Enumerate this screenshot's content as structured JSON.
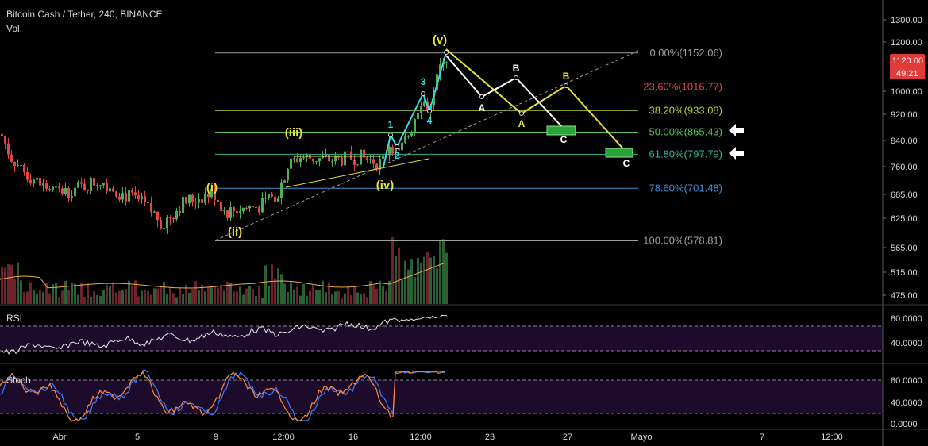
{
  "header": {
    "title": "Bitcoin Cash / Tether, 240, BINANCE",
    "volume_label": "Vol."
  },
  "colors": {
    "background": "#000000",
    "up_candle": "#4caf50",
    "down_candle": "#e04848",
    "wave_cyan": "#3fd6e8",
    "wave_yellow": "#e6e13a",
    "wave_white": "#ffffff",
    "price_badge": "#e03a3a",
    "rsi_band": "#1c0b2a"
  },
  "chart_data": {
    "type": "candlestick",
    "symbol": "Bitcoin Cash / Tether",
    "interval": "240",
    "exchange": "BINANCE",
    "x_tick_labels": [
      "Abr",
      "5",
      "9",
      "12:00",
      "16",
      "12:00",
      "23",
      "27",
      "Mayo",
      "7",
      "12:00"
    ],
    "y_axis": {
      "range": [
        455,
        1340
      ],
      "ticks": [
        1300,
        1200,
        1120,
        1000,
        920,
        840,
        760,
        685,
        625,
        565,
        515,
        475
      ],
      "tick_labels": [
        "1300.00",
        "1200.00",
        "1120.00",
        "1000.00",
        "920.00",
        "840.00",
        "760.00",
        "685.00",
        "625.00",
        "565.00",
        "515.00",
        "475.00"
      ]
    },
    "current_price": {
      "value": 1120,
      "label": "1120.00",
      "countdown": "49:21"
    },
    "fibonacci_levels": [
      {
        "label": "0.00%(1152.06)",
        "value": 1152.06,
        "color": "#9e9e9e"
      },
      {
        "label": "23.60%(1016.77)",
        "value": 1016.77,
        "color": "#e04848"
      },
      {
        "label": "38.20%(933.08)",
        "value": 933.08,
        "color": "#b7cf3a"
      },
      {
        "label": "50.00%(865.43)",
        "value": 865.43,
        "color": "#58c35a"
      },
      {
        "label": "61.80%(797.79)",
        "value": 797.79,
        "color": "#2fb59a"
      },
      {
        "label": "78.60%(701.48)",
        "value": 701.48,
        "color": "#3d8fd8"
      },
      {
        "label": "100.00%(578.81)",
        "value": 578.81,
        "color": "#9e9e9e"
      }
    ],
    "wave_labels": [
      "(i)",
      "(ii)",
      "(iii)",
      "(iv)",
      "(v)",
      "1",
      "2",
      "3",
      "4",
      "A",
      "B",
      "C",
      "A",
      "B",
      "C"
    ],
    "rsi": {
      "label": "RSI",
      "tick_labels": [
        "80.0000",
        "40.0000"
      ],
      "upper": 70,
      "lower": 30
    },
    "stoch": {
      "label": "Stoch",
      "tick_labels": [
        "80.0000",
        "40.0000",
        "0.0000"
      ],
      "upper": 80,
      "lower": 20
    },
    "grid": false
  }
}
